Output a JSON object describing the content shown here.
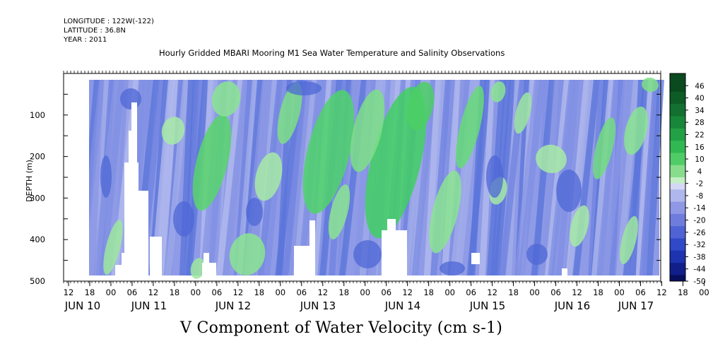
{
  "header": {
    "longitude": "LONGITUDE : 122W(-122)",
    "latitude": "LATITUDE : 36.8N",
    "year": "YEAR : 2011",
    "title": "Hourly Gridded MBARI Mooring M1 Sea Water Temperature and Salinity Observations"
  },
  "footer": {
    "variable_title": "V Component of Water Velocity (cm s-1)"
  },
  "chart_data": {
    "type": "heatmap",
    "title": "Hourly Gridded MBARI Mooring M1 Sea Water Temperature and Salinity Observations",
    "xlabel": "",
    "ylabel": "DEPTH (m)",
    "ylim": [
      500,
      0
    ],
    "y_reversed": true,
    "y_ticks": [
      100,
      200,
      300,
      400,
      500
    ],
    "x_hour_ticks": [
      "12",
      "18",
      "00",
      "06",
      "12",
      "18",
      "00",
      "06",
      "12",
      "18",
      "00",
      "06",
      "12",
      "18",
      "00",
      "06",
      "12",
      "18",
      "00",
      "06",
      "12",
      "18",
      "00",
      "06",
      "12",
      "18",
      "00",
      "06",
      "12",
      "18",
      "00",
      "06"
    ],
    "x_day_labels": [
      "JUN 10",
      "JUN 11",
      "JUN 12",
      "JUN 13",
      "JUN 14",
      "JUN 15",
      "JUN 16",
      "JUN 17"
    ],
    "colorbar_ticks": [
      46,
      40,
      34,
      28,
      22,
      16,
      10,
      4,
      -2,
      -8,
      -14,
      -20,
      -26,
      -32,
      -38,
      -44,
      -50
    ],
    "colorbar_range": [
      -50,
      52
    ],
    "colormap": {
      "negative": [
        "#000066",
        "#1a2bb8",
        "#3355dd",
        "#6677dd",
        "#99a2e6",
        "#c2c8f0"
      ],
      "positive": [
        "#ccf0cc",
        "#88e088",
        "#33cc55",
        "#1aa040",
        "#0a7a2a",
        "#064d1a"
      ]
    },
    "predominant_values": "mostly -2 to -20 cm/s with positive bands 4 to 22 cm/s",
    "missing_data_color": "#ffffff"
  }
}
